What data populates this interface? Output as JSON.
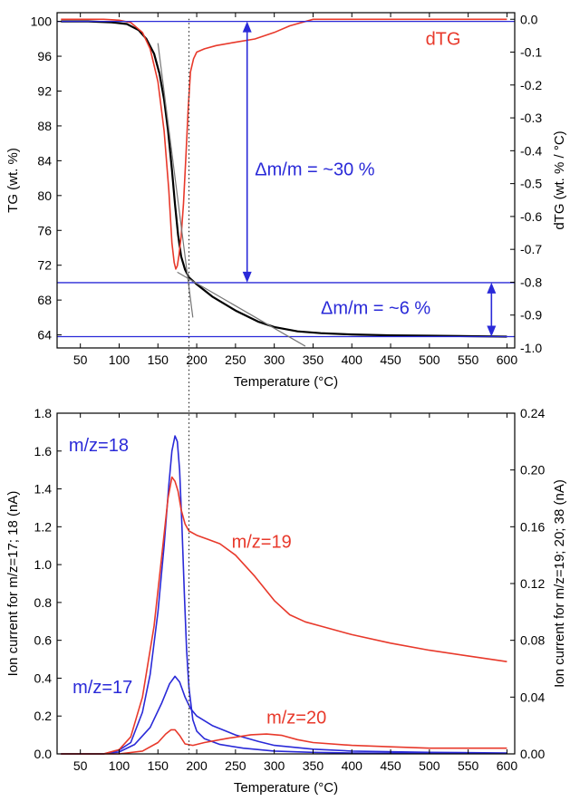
{
  "chart_data": [
    {
      "type": "line",
      "xlabel": "Temperature (°C)",
      "ylabel": "TG (wt. %)",
      "ylabel_right": "dTG (wt. % / °C)",
      "xlim": [
        20,
        610
      ],
      "ylim": [
        62.5,
        101
      ],
      "ylim_right": [
        -1.0,
        0.02
      ],
      "x_ticks": [
        50,
        100,
        150,
        200,
        250,
        300,
        350,
        400,
        450,
        500,
        550,
        600
      ],
      "y_ticks": [
        64,
        68,
        72,
        76,
        80,
        84,
        88,
        92,
        96,
        100
      ],
      "y2_ticks": [
        "0.0",
        "-0.1",
        "-0.2",
        "-0.3",
        "-0.4",
        "-0.5",
        "-0.6",
        "-0.7",
        "-0.8",
        "-0.9",
        "-1.0"
      ],
      "series": [
        {
          "color": "#000000",
          "axis": "left",
          "x": [
            25,
            60,
            90,
            110,
            125,
            135,
            145,
            152,
            158,
            163,
            168,
            172,
            176,
            180,
            185,
            190,
            200,
            220,
            250,
            280,
            300,
            330,
            360,
            400,
            450,
            500,
            550,
            600
          ],
          "y": [
            100,
            100,
            99.9,
            99.7,
            99.0,
            98.0,
            96.3,
            94.0,
            91.0,
            87.5,
            83.0,
            79.0,
            75.5,
            73.0,
            71.5,
            70.6,
            69.8,
            68.4,
            66.8,
            65.5,
            64.9,
            64.4,
            64.2,
            64.05,
            63.95,
            63.9,
            63.85,
            63.8
          ]
        },
        {
          "name": "dTG",
          "color": "#e8392b",
          "axis": "right",
          "x": [
            25,
            80,
            100,
            115,
            130,
            140,
            150,
            158,
            164,
            168,
            171,
            173,
            175,
            177,
            180,
            183,
            186,
            189,
            192,
            196,
            200,
            210,
            225,
            250,
            275,
            300,
            320,
            350,
            400,
            500,
            600
          ],
          "y": [
            0,
            0,
            -0.003,
            -0.01,
            -0.04,
            -0.09,
            -0.19,
            -0.34,
            -0.52,
            -0.68,
            -0.74,
            -0.76,
            -0.75,
            -0.72,
            -0.66,
            -0.56,
            -0.42,
            -0.27,
            -0.16,
            -0.12,
            -0.1,
            -0.09,
            -0.08,
            -0.07,
            -0.06,
            -0.04,
            -0.02,
            0,
            0,
            0,
            0
          ]
        }
      ],
      "annotations": [
        {
          "text": "Δm/m = ~30 %",
          "color": "#2a2ad8"
        },
        {
          "text": "Δm/m = ~6 %",
          "color": "#2a2ad8"
        },
        {
          "text": "dTG",
          "color": "#e8392b"
        }
      ]
    },
    {
      "type": "line",
      "xlabel": "Temperature (°C)",
      "ylabel": "Ion current for m/z=17; 18 (nA)",
      "ylabel_right": "Ion current for m/z=19; 20; 38 (nA)",
      "xlim": [
        20,
        610
      ],
      "ylim": [
        0,
        1.8
      ],
      "ylim_right": [
        0,
        0.24
      ],
      "x_ticks": [
        50,
        100,
        150,
        200,
        250,
        300,
        350,
        400,
        450,
        500,
        550,
        600
      ],
      "y_ticks": [
        "0.0",
        "0.2",
        "0.4",
        "0.6",
        "0.8",
        "1.0",
        "1.2",
        "1.4",
        "1.6",
        "1.8"
      ],
      "y2_ticks": [
        "0.00",
        "0.04",
        "0.08",
        "0.12",
        "0.16",
        "0.20",
        "0.24"
      ],
      "series": [
        {
          "name": "m/z=18",
          "color": "#2a2ad8",
          "axis": "left",
          "x": [
            25,
            80,
            100,
            115,
            130,
            140,
            150,
            158,
            164,
            168,
            172,
            175,
            178,
            181,
            184,
            187,
            190,
            195,
            200,
            210,
            230,
            260,
            300,
            350,
            400,
            500,
            600
          ],
          "y": [
            0,
            0,
            0.02,
            0.06,
            0.22,
            0.42,
            0.75,
            1.1,
            1.42,
            1.6,
            1.68,
            1.65,
            1.5,
            1.2,
            0.85,
            0.55,
            0.35,
            0.18,
            0.12,
            0.08,
            0.05,
            0.03,
            0.015,
            0.008,
            0.005,
            0.003,
            0.002
          ]
        },
        {
          "name": "m/z=17",
          "color": "#2a2ad8",
          "axis": "left",
          "x": [
            25,
            80,
            100,
            120,
            140,
            155,
            165,
            172,
            178,
            185,
            192,
            200,
            220,
            250,
            280,
            300,
            350,
            400,
            500,
            600
          ],
          "y": [
            0,
            0,
            0.01,
            0.05,
            0.14,
            0.27,
            0.37,
            0.41,
            0.38,
            0.3,
            0.24,
            0.2,
            0.15,
            0.1,
            0.065,
            0.045,
            0.025,
            0.015,
            0.008,
            0.005
          ]
        },
        {
          "name": "m/z=19",
          "color": "#e8392b",
          "axis": "right",
          "x": [
            25,
            80,
            100,
            115,
            130,
            145,
            155,
            163,
            168,
            172,
            176,
            180,
            185,
            190,
            200,
            215,
            230,
            250,
            275,
            300,
            320,
            340,
            360,
            400,
            450,
            500,
            550,
            600
          ],
          "y": [
            0,
            0,
            0.003,
            0.012,
            0.04,
            0.09,
            0.14,
            0.18,
            0.195,
            0.192,
            0.185,
            0.172,
            0.162,
            0.157,
            0.154,
            0.151,
            0.148,
            0.14,
            0.125,
            0.108,
            0.098,
            0.093,
            0.09,
            0.084,
            0.078,
            0.073,
            0.069,
            0.065
          ]
        },
        {
          "name": "m/z=20",
          "color": "#e8392b",
          "axis": "right",
          "x": [
            25,
            100,
            130,
            150,
            160,
            167,
            172,
            178,
            185,
            195,
            210,
            240,
            270,
            290,
            310,
            330,
            350,
            400,
            450,
            500,
            600
          ],
          "y": [
            0,
            0,
            0.002,
            0.008,
            0.014,
            0.017,
            0.017,
            0.013,
            0.007,
            0.006,
            0.008,
            0.011,
            0.0135,
            0.014,
            0.013,
            0.01,
            0.008,
            0.006,
            0.005,
            0.004,
            0.004
          ]
        }
      ],
      "annotations": [
        {
          "text": "m/z=18",
          "color": "#2a2ad8"
        },
        {
          "text": "m/z=17",
          "color": "#2a2ad8"
        },
        {
          "text": "m/z=19",
          "color": "#e8392b"
        },
        {
          "text": "m/z=20",
          "color": "#e8392b"
        }
      ]
    }
  ]
}
